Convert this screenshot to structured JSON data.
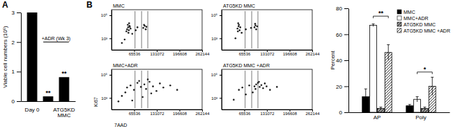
{
  "chart_data": [
    {
      "type": "bar",
      "panel": "A",
      "categories": [
        "Day 0",
        null,
        "ATG5KD MMC"
      ],
      "values": [
        3,
        0.15,
        0.8
      ],
      "color": "#000000",
      "ylabel": "Viable cell numbers (10⁶)",
      "ylim": [
        0,
        3
      ],
      "yticks": [
        0,
        1,
        2,
        3
      ],
      "annotations": [
        {
          "text": "+ADR (Wk 3)",
          "span": [
            1,
            2
          ],
          "y": 2
        },
        {
          "text": "**",
          "at": 1
        },
        {
          "text": "**",
          "at": 2
        }
      ]
    },
    {
      "type": "scatter",
      "panel": "B",
      "title": "MMC",
      "log": "y",
      "x": [
        45000,
        48000,
        50000,
        52000,
        47000,
        55000,
        43000,
        51000,
        49000,
        53000,
        92000,
        96000,
        99000,
        94000,
        101000,
        38000,
        60000,
        75000,
        70000,
        30000
      ],
      "values": [
        6000,
        9000,
        5000,
        12000,
        15000,
        7000,
        4000,
        20000,
        3000,
        10000,
        8000,
        12000,
        6000,
        15000,
        10000,
        800,
        2500,
        9000,
        5000,
        400
      ],
      "gates": [
        68000,
        87000,
        105000
      ],
      "xlim": [
        0,
        262144
      ],
      "xticks": [
        65536,
        131072,
        196608,
        262144
      ],
      "ylim": [
        100,
        300000
      ],
      "yticks": [
        {
          "value": 1000,
          "label": "10³"
        },
        {
          "value": 100000,
          "label": "10⁵"
        }
      ]
    },
    {
      "type": "scatter",
      "title": "ATG5KD MMC",
      "log": "y",
      "x": [
        46000,
        49000,
        52000,
        50000,
        54000,
        47000,
        48000,
        95000,
        98000,
        100000,
        97000,
        103000,
        70000,
        40000,
        58000,
        85000
      ],
      "values": [
        7000,
        11000,
        5000,
        15000,
        9000,
        4000,
        20000,
        9000,
        13000,
        6000,
        18000,
        11000,
        6000,
        1000,
        3000,
        8000
      ],
      "gates": [
        68000,
        87000,
        105000
      ],
      "xlim": [
        0,
        262144
      ],
      "xticks": [
        65536,
        131072,
        196608,
        262144
      ],
      "ylim": [
        100,
        300000
      ],
      "yticks": [
        {
          "value": 1000,
          "label": "10³"
        },
        {
          "value": 100000,
          "label": "10⁵"
        }
      ]
    },
    {
      "type": "scatter",
      "title": "MMC+ADR",
      "log": "y",
      "xlabel": "7AAD",
      "ylabel": "Ki67",
      "x": [
        20000,
        30000,
        40000,
        45000,
        55000,
        65000,
        75000,
        85000,
        95000,
        100000,
        110000,
        120000,
        130000,
        140000,
        150000,
        170000,
        190000,
        60000,
        90000,
        115000,
        80000,
        105000
      ],
      "values": [
        500,
        1500,
        3000,
        8000,
        12000,
        5000,
        20000,
        9000,
        15000,
        6000,
        25000,
        10000,
        4000,
        18000,
        8000,
        12000,
        5000,
        600,
        1200,
        2500,
        30000,
        40000
      ],
      "gates": [
        68000,
        87000,
        105000
      ],
      "xlim": [
        0,
        262144
      ],
      "xticks": [
        65536,
        131072,
        196608,
        262144
      ],
      "ylim": [
        100,
        300000
      ],
      "yticks": [
        {
          "value": 1000,
          "label": "10³"
        },
        {
          "value": 100000,
          "label": "10⁵"
        }
      ]
    },
    {
      "type": "scatter",
      "title": "ATG5KD MMC +ADR",
      "log": "y",
      "x": [
        50000,
        60000,
        80000,
        95000,
        100000,
        105000,
        110000,
        115000,
        120000,
        125000,
        108000,
        98000,
        130000,
        140000,
        90000,
        70000,
        160000,
        35000
      ],
      "values": [
        5000,
        8000,
        12000,
        10000,
        15000,
        20000,
        9000,
        13000,
        7000,
        18000,
        25000,
        6000,
        10000,
        5000,
        3000,
        2000,
        9000,
        700
      ],
      "gates": [
        68000,
        87000,
        105000
      ],
      "xlim": [
        0,
        262144
      ],
      "xticks": [
        65536,
        131072,
        196608,
        262144
      ],
      "ylim": [
        100,
        300000
      ],
      "yticks": [
        {
          "value": 1000,
          "label": "10³"
        },
        {
          "value": 100000,
          "label": "10⁵"
        }
      ]
    },
    {
      "type": "bar",
      "categories": [
        "AP",
        "Poly"
      ],
      "ylabel": "Percent",
      "legend": "top-right",
      "series": [
        {
          "name": "MMC",
          "color": "#000000",
          "values": [
            12,
            5
          ],
          "errors": [
            6,
            1
          ]
        },
        {
          "name": "MMC+ADR",
          "color": "#ffffff",
          "values": [
            67,
            10
          ],
          "errors": [
            1,
            2
          ]
        },
        {
          "name": "ATG5KD MMC",
          "color": "#999999",
          "values": [
            3,
            3
          ],
          "errors": [
            1,
            1
          ]
        },
        {
          "name": "ATG5KD MMC +ADR",
          "color": "#ffffff",
          "values": [
            46,
            20
          ],
          "errors": [
            6,
            7
          ]
        }
      ],
      "ylim": [
        0,
        80
      ],
      "yticks": [
        0,
        20,
        40,
        60,
        80
      ],
      "annotations": [
        {
          "text": "**",
          "category": "AP",
          "between": [
            "MMC+ADR",
            "ATG5KD MMC +ADR"
          ],
          "y": 74
        },
        {
          "text": "*",
          "category": "Poly",
          "between": [
            "MMC+ADR",
            "ATG5KD MMC +ADR"
          ],
          "y": 31
        }
      ]
    }
  ]
}
